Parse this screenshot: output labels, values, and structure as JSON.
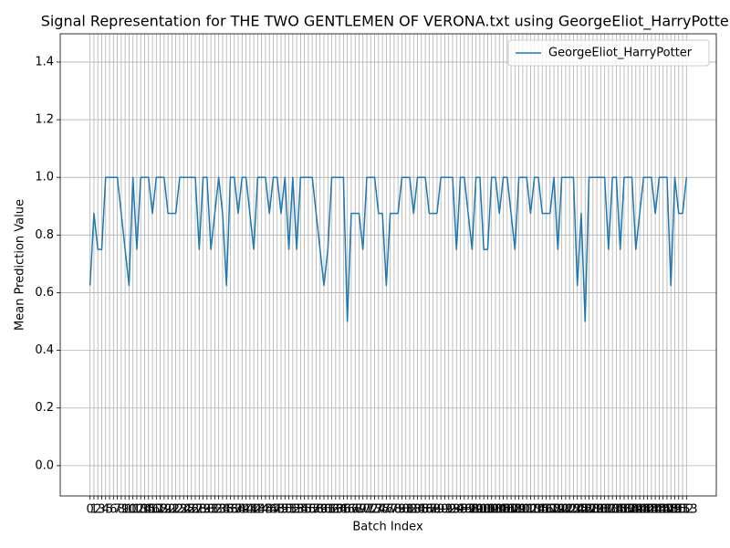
{
  "chart_data": {
    "type": "line",
    "title": "Signal Representation for THE TWO GENTLEMEN OF VERONA.txt using GeorgeEliot_HarryPotter",
    "x_label": "Batch Index",
    "y_label": "Mean Prediction Value",
    "x": [
      0,
      1,
      2,
      3,
      4,
      5,
      6,
      7,
      8,
      9,
      10,
      11,
      12,
      13,
      14,
      15,
      16,
      17,
      18,
      19,
      20,
      21,
      22,
      23,
      24,
      25,
      26,
      27,
      28,
      29,
      30,
      31,
      32,
      33,
      34,
      35,
      36,
      37,
      38,
      39,
      40,
      41,
      42,
      43,
      44,
      45,
      46,
      47,
      48,
      49,
      50,
      51,
      52,
      53,
      54,
      55,
      56,
      57,
      58,
      59,
      60,
      61,
      62,
      63,
      64,
      65,
      66,
      67,
      68,
      69,
      70,
      71,
      72,
      73,
      74,
      75,
      76,
      77,
      78,
      79,
      80,
      81,
      82,
      83,
      84,
      85,
      86,
      87,
      88,
      89,
      90,
      91,
      92,
      93,
      94,
      95,
      96,
      97,
      98,
      99,
      100,
      101,
      102,
      103,
      104,
      105,
      106,
      107,
      108,
      109,
      110,
      111,
      112,
      113,
      114,
      115,
      116,
      117,
      118,
      119,
      120,
      121,
      122,
      123,
      124,
      125,
      126,
      127,
      128,
      129,
      130,
      131,
      132,
      133,
      134,
      135,
      136,
      137,
      138,
      139,
      140,
      141,
      142,
      143,
      144,
      145,
      146,
      147,
      148,
      149,
      150,
      151,
      152,
      153
    ],
    "series": [
      {
        "name": "GeorgeEliot_HarryPotter",
        "color": "#1f77b4",
        "values": [
          0.625,
          0.875,
          0.75,
          0.75,
          1,
          1,
          1,
          1,
          0.875,
          0.75,
          0.625,
          1,
          0.75,
          1,
          1,
          1,
          0.875,
          1,
          1,
          1,
          0.875,
          0.875,
          0.875,
          1,
          1,
          1,
          1,
          1,
          0.75,
          1,
          1,
          0.75,
          0.875,
          1,
          0.875,
          0.625,
          1,
          1,
          0.875,
          1,
          1,
          0.875,
          0.75,
          1,
          1,
          1,
          0.875,
          1,
          1,
          0.875,
          1,
          0.75,
          1,
          0.75,
          1,
          1,
          1,
          1,
          0.875,
          0.75,
          0.625,
          0.75,
          1,
          1,
          1,
          1,
          0.5,
          0.875,
          0.875,
          0.875,
          0.75,
          1,
          1,
          1,
          0.875,
          0.875,
          0.625,
          0.875,
          0.875,
          0.875,
          1,
          1,
          1,
          0.875,
          1,
          1,
          1,
          0.875,
          0.875,
          0.875,
          1,
          1,
          1,
          1,
          0.75,
          1,
          1,
          0.875,
          0.75,
          1,
          1,
          0.75,
          0.75,
          1,
          1,
          0.875,
          1,
          1,
          0.875,
          0.75,
          1,
          1,
          1,
          0.875,
          1,
          1,
          0.875,
          0.875,
          0.875,
          1,
          0.75,
          1,
          1,
          1,
          1,
          0.625,
          0.875,
          0.5,
          1,
          1,
          1,
          1,
          1,
          0.75,
          1,
          1,
          0.75,
          1,
          1,
          1,
          0.75,
          0.875,
          1,
          1,
          1,
          0.875,
          1,
          1,
          1,
          0.625,
          1,
          0.875,
          0.875,
          1
        ]
      }
    ],
    "xlim": [
      -7.65,
      160.65
    ],
    "xticks": [
      0,
      1,
      2,
      3,
      4,
      5,
      6,
      7,
      8,
      9,
      10,
      11,
      12,
      13,
      14,
      15,
      16,
      17,
      18,
      19,
      20,
      21,
      22,
      23,
      24,
      25,
      26,
      27,
      28,
      29,
      30,
      31,
      32,
      33,
      34,
      35,
      36,
      37,
      38,
      39,
      40,
      41,
      42,
      43,
      44,
      45,
      46,
      47,
      48,
      49,
      50,
      51,
      52,
      53,
      54,
      55,
      56,
      57,
      58,
      59,
      60,
      61,
      62,
      63,
      64,
      65,
      66,
      67,
      68,
      69,
      70,
      71,
      72,
      73,
      74,
      75,
      76,
      77,
      78,
      79,
      80,
      81,
      82,
      83,
      84,
      85,
      86,
      87,
      88,
      89,
      90,
      91,
      92,
      93,
      94,
      95,
      96,
      97,
      98,
      99,
      100,
      101,
      102,
      103,
      104,
      105,
      106,
      107,
      108,
      109,
      110,
      111,
      112,
      113,
      114,
      115,
      116,
      117,
      118,
      119,
      120,
      121,
      122,
      123,
      124,
      125,
      126,
      127,
      128,
      129,
      130,
      131,
      132,
      133,
      134,
      135,
      136,
      137,
      138,
      139,
      140,
      141,
      142,
      143,
      144,
      145,
      146,
      147,
      148,
      149,
      150,
      151,
      152,
      153
    ],
    "ylim": [
      -0.105,
      1.498
    ],
    "yticks": [
      {
        "value": 0,
        "label": "0.0"
      },
      0.2,
      0.4,
      0.6,
      0.8,
      {
        "value": 1,
        "label": "1.0"
      },
      1.2,
      1.4
    ],
    "grid": true,
    "legend": "upper right"
  }
}
